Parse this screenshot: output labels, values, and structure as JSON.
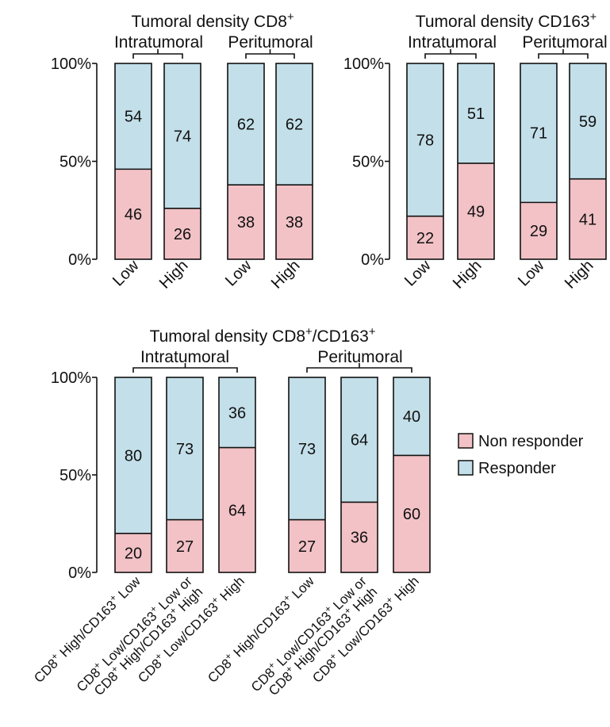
{
  "colors": {
    "non_responder": "#f2c2c6",
    "responder": "#c3dfe9",
    "stroke": "#111111"
  },
  "legend": [
    {
      "label": "Non responder",
      "color": "#f2c2c6"
    },
    {
      "label": "Responder",
      "color": "#c3dfe9"
    }
  ],
  "chart_data": [
    {
      "type": "bar",
      "stacked": true,
      "title_main": "Tumoral density CD8",
      "title_sup": "+",
      "ylim": [
        0,
        100
      ],
      "yticks": [
        "0%",
        "50%",
        "100%"
      ],
      "groups": [
        "Intratumoral",
        "Peritumoral"
      ],
      "categories": [
        "Low",
        "High",
        "Low",
        "High"
      ],
      "series": [
        {
          "name": "Non responder",
          "values": [
            46,
            26,
            38,
            38
          ]
        },
        {
          "name": "Responder",
          "values": [
            54,
            74,
            62,
            62
          ]
        }
      ]
    },
    {
      "type": "bar",
      "stacked": true,
      "title_main": "Tumoral density CD163",
      "title_sup": "+",
      "ylim": [
        0,
        100
      ],
      "yticks": [
        "0%",
        "50%",
        "100%"
      ],
      "groups": [
        "Intratumoral",
        "Peritumoral"
      ],
      "categories": [
        "Low",
        "High",
        "Low",
        "High"
      ],
      "series": [
        {
          "name": "Non responder",
          "values": [
            22,
            49,
            29,
            41
          ]
        },
        {
          "name": "Responder",
          "values": [
            78,
            51,
            71,
            59
          ]
        }
      ]
    },
    {
      "type": "bar",
      "stacked": true,
      "title_main": "Tumoral density CD8",
      "title_sup": "+",
      "title_mid": "/CD163",
      "title_sup2": "+",
      "ylim": [
        0,
        100
      ],
      "yticks": [
        "0%",
        "50%",
        "100%"
      ],
      "groups": [
        "Intratumoral",
        "Peritumoral"
      ],
      "categories": [
        "CD8+ High/CD163+ Low",
        "CD8+ Low/CD163+ Low or CD8+ High/CD163+ High",
        "CD8+ Low/CD163+ High",
        "CD8+ High/CD163+ Low",
        "CD8+ Low/CD163+ Low or CD8+ High/CD163+ High",
        "CD8+ Low/CD163+ High"
      ],
      "category_lines": [
        [
          [
            "CD8",
            "+",
            " High/CD163",
            "+",
            " Low"
          ]
        ],
        [
          [
            "CD8",
            "+",
            " Low/CD163",
            "+",
            " Low or"
          ],
          [
            "CD8",
            "+",
            " High/CD163",
            "+",
            " High"
          ]
        ],
        [
          [
            "CD8",
            "+",
            " Low/CD163",
            "+",
            " High"
          ]
        ],
        [
          [
            "CD8",
            "+",
            " High/CD163",
            "+",
            " Low"
          ]
        ],
        [
          [
            "CD8",
            "+",
            " Low/CD163",
            "+",
            " Low or"
          ],
          [
            "CD8",
            "+",
            " High/CD163",
            "+",
            " High"
          ]
        ],
        [
          [
            "CD8",
            "+",
            " Low/CD163",
            "+",
            " High"
          ]
        ]
      ],
      "series": [
        {
          "name": "Non responder",
          "values": [
            20,
            27,
            64,
            27,
            36,
            60
          ]
        },
        {
          "name": "Responder",
          "values": [
            80,
            73,
            36,
            73,
            64,
            40
          ]
        }
      ]
    }
  ]
}
